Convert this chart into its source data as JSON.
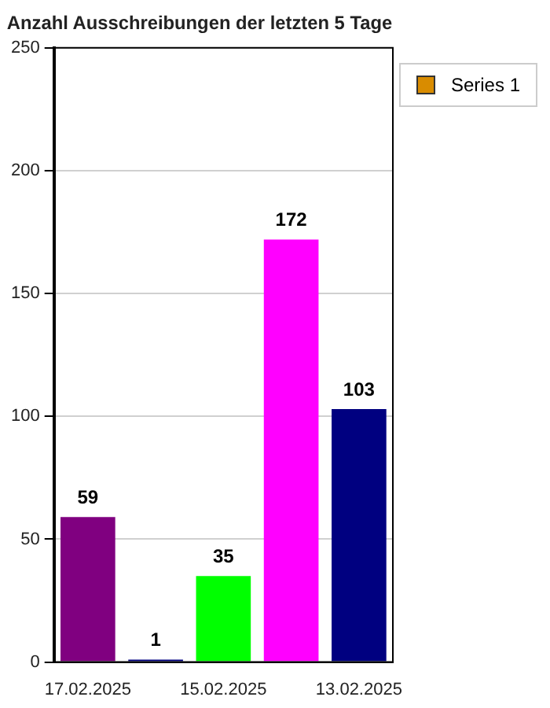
{
  "chart_data": {
    "type": "bar",
    "title": "Anzahl Ausschreibungen der letzten 5 Tage",
    "categories": [
      "17.02.2025",
      null,
      "15.02.2025",
      null,
      "13.02.2025"
    ],
    "series": [
      {
        "name": "Series 1",
        "color": "#d98c00",
        "colors": [
          "#800080",
          "#000080",
          "#00ff00",
          "#ff00ff",
          "#000080"
        ],
        "values": [
          59,
          1,
          35,
          172,
          103
        ]
      }
    ],
    "ylim": [
      0,
      250
    ],
    "yticks": [
      0,
      50,
      100,
      150,
      200,
      250
    ],
    "grid": "y",
    "legend": "top right",
    "data_labels": true
  }
}
